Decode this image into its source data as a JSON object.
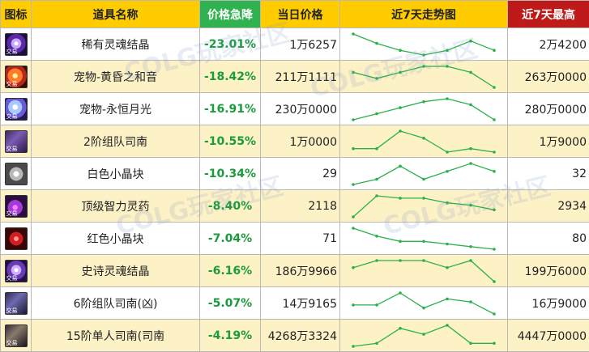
{
  "headers": {
    "icon": "图标",
    "name": "道具名称",
    "drop": "价格急降",
    "price": "当日价格",
    "trend": "近7天走势图",
    "max": "近7天最高"
  },
  "colors": {
    "header_yellow": "#ffcc00",
    "header_green": "#2fb24f",
    "header_red": "#bf1a1a",
    "drop_text": "#1a9b3c",
    "sparkline": "#2bb14b",
    "row_alt": "#fdf1c6"
  },
  "rows": [
    {
      "icon": "soul-crystal-icon",
      "tag": "交易",
      "name": "稀有灵魂结晶",
      "drop": "-23.01%",
      "price": "1万6257",
      "max": "2万4200",
      "trend": [
        9,
        5,
        2,
        0,
        2,
        6,
        2
      ]
    },
    {
      "icon": "pet-sunset-icon",
      "tag": "交易",
      "name": "宠物-黄昏之和音",
      "drop": "-18.42%",
      "price": "211万1111",
      "max": "263万0000",
      "trend": [
        5,
        3,
        5,
        7,
        7,
        5,
        0
      ]
    },
    {
      "icon": "pet-moonlight-icon",
      "tag": "交易",
      "name": "宠物-永恒月光",
      "drop": "-16.91%",
      "price": "230万0000",
      "max": "280万0000",
      "trend": [
        0,
        2,
        4,
        6,
        7,
        5,
        0
      ]
    },
    {
      "icon": "scroll-icon",
      "tag": "交易",
      "name": "2阶组队司南",
      "drop": "-10.55%",
      "price": "1万0000",
      "max": "1万9000",
      "trend": [
        1,
        1,
        6,
        4,
        0,
        1,
        0
      ]
    },
    {
      "icon": "white-cube-icon",
      "tag": "",
      "name": "白色小晶块",
      "drop": "-10.34%",
      "price": "29",
      "max": "32",
      "trend": [
        0,
        2,
        7,
        2,
        5,
        8,
        5
      ]
    },
    {
      "icon": "intel-potion-icon",
      "tag": "交易",
      "name": "顶级智力灵药",
      "drop": "-8.40%",
      "price": "2118",
      "max": "2934",
      "trend": [
        0,
        9,
        8,
        8,
        6,
        5,
        3
      ]
    },
    {
      "icon": "red-cube-icon",
      "tag": "",
      "name": "红色小晶块",
      "drop": "-7.04%",
      "price": "71",
      "max": "80",
      "trend": [
        8,
        5,
        3,
        3,
        2,
        1,
        0
      ]
    },
    {
      "icon": "epic-soul-crystal-icon",
      "tag": "交易",
      "name": "史诗灵魂结晶",
      "drop": "-6.16%",
      "price": "186万9966",
      "max": "199万6000",
      "trend": [
        4,
        6,
        6,
        6,
        4,
        6,
        0
      ]
    },
    {
      "icon": "scroll-icon",
      "tag": "交易",
      "name": "6阶组队司南(凶)",
      "drop": "-5.07%",
      "price": "14万9165",
      "max": "16万9000",
      "trend": [
        3,
        3,
        7,
        2,
        5,
        4,
        0
      ]
    },
    {
      "icon": "scroll-icon",
      "tag": "交易",
      "name": "15阶单人司南(司南",
      "drop": "-4.19%",
      "price": "4268万3324",
      "max": "4447万0000",
      "trend": [
        0,
        1,
        6,
        4,
        7,
        1,
        1
      ]
    }
  ],
  "chart_data": {
    "type": "table",
    "title": "",
    "columns": [
      "图标",
      "道具名称",
      "价格急降",
      "当日价格",
      "近7天走势图",
      "近7天最高"
    ],
    "rows": [
      [
        "稀有灵魂结晶",
        "-23.01%",
        "1万6257",
        "2万4200"
      ],
      [
        "宠物-黄昏之和音",
        "-18.42%",
        "211万1111",
        "263万0000"
      ],
      [
        "宠物-永恒月光",
        "-16.91%",
        "230万0000",
        "280万0000"
      ],
      [
        "2阶组队司南",
        "-10.55%",
        "1万0000",
        "1万9000"
      ],
      [
        "白色小晶块",
        "-10.34%",
        "29",
        "32"
      ],
      [
        "顶级智力灵药",
        "-8.40%",
        "2118",
        "2934"
      ],
      [
        "红色小晶块",
        "-7.04%",
        "71",
        "80"
      ],
      [
        "史诗灵魂结晶",
        "-6.16%",
        "186万9966",
        "199万6000"
      ],
      [
        "6阶组队司南(凶)",
        "-5.07%",
        "14万9165",
        "16万9000"
      ],
      [
        "15阶单人司南(司南",
        "-4.19%",
        "4268万3324",
        "4447万0000"
      ]
    ]
  }
}
